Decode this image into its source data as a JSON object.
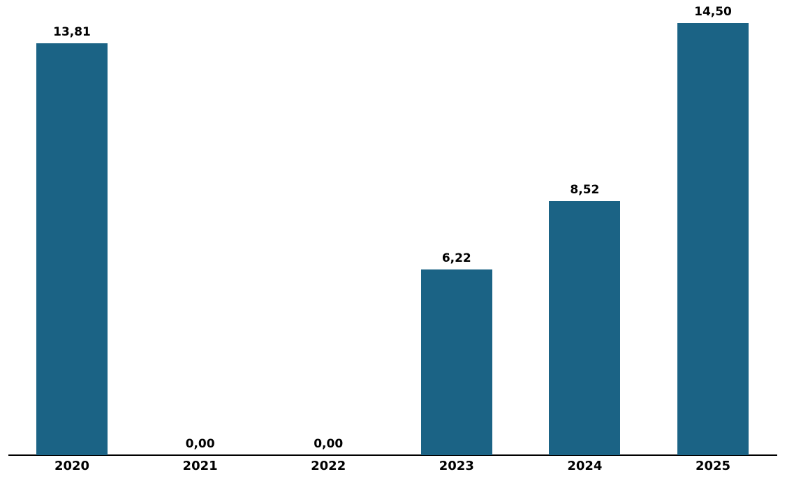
{
  "chart_data": {
    "type": "bar",
    "categories": [
      "2020",
      "2021",
      "2022",
      "2023",
      "2024",
      "2025"
    ],
    "values": [
      13.81,
      0.0,
      0.0,
      6.22,
      8.52,
      14.5
    ],
    "value_labels": [
      "13,81",
      "0,00",
      "0,00",
      "6,22",
      "8,52",
      "14,50"
    ],
    "title": "",
    "xlabel": "",
    "ylabel": "",
    "ylim": [
      0,
      14.5
    ],
    "grid": false,
    "legend_position": "none",
    "decimal_separator": ",",
    "colors": {
      "bar_fill": "#1B6385",
      "data_label": "#000000",
      "axis_line": "#000000",
      "tick_label": "#000000",
      "background": "#FFFFFF"
    }
  }
}
